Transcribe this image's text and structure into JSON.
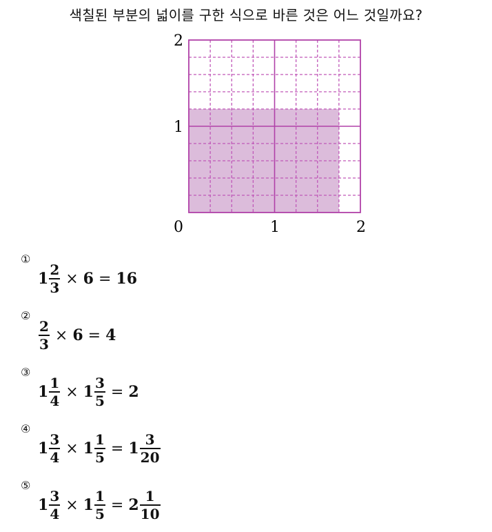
{
  "question": "색칠된 부분의 넓이를 구한 식으로 바른 것은 어느 것일까요?",
  "figure": {
    "x_labels": [
      "0",
      "1",
      "2"
    ],
    "y_labels": [
      "1",
      "2"
    ],
    "grid": {
      "cols": 8,
      "rows": 10,
      "shaded_cols": 7,
      "shaded_rows": 6
    },
    "colors": {
      "fill": "#dcbcdb",
      "line": "#c058b8",
      "axis": "#b040a8"
    }
  },
  "options": [
    {
      "marker": "①",
      "parts": {
        "w1": "1",
        "n1": "2",
        "d1": "3",
        "times": "×",
        "b": "6",
        "eq": "=",
        "r": "16"
      }
    },
    {
      "marker": "②",
      "parts": {
        "n1": "2",
        "d1": "3",
        "times": "×",
        "b": "6",
        "eq": "=",
        "r": "4"
      }
    },
    {
      "marker": "③",
      "parts": {
        "w1": "1",
        "n1": "1",
        "d1": "4",
        "times": "×",
        "w2": "1",
        "n2": "3",
        "d2": "5",
        "eq": "=",
        "r": "2"
      }
    },
    {
      "marker": "④",
      "parts": {
        "w1": "1",
        "n1": "3",
        "d1": "4",
        "times": "×",
        "w2": "1",
        "n2": "1",
        "d2": "5",
        "eq": "=",
        "rw": "1",
        "rn": "3",
        "rd": "20"
      }
    },
    {
      "marker": "⑤",
      "parts": {
        "w1": "1",
        "n1": "3",
        "d1": "4",
        "times": "×",
        "w2": "1",
        "n2": "1",
        "d2": "5",
        "eq": "=",
        "rw": "2",
        "rn": "1",
        "rd": "10"
      }
    }
  ]
}
